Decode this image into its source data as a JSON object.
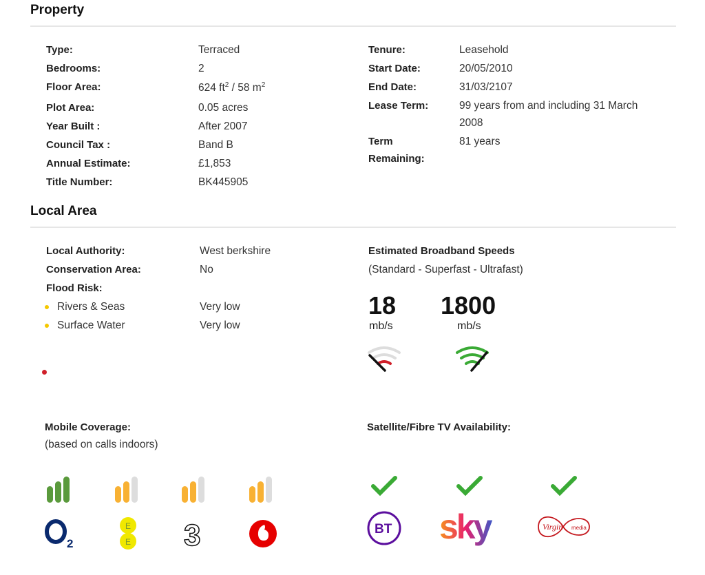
{
  "property": {
    "title": "Property",
    "left": [
      {
        "label": "Type:",
        "value": "Terraced"
      },
      {
        "label": "Bedrooms:",
        "value": "2"
      },
      {
        "label": "Floor Area:",
        "value": "624 ft² / 58 m²"
      },
      {
        "label": "Plot Area:",
        "value": "0.05 acres"
      },
      {
        "label": "Year Built :",
        "value": "After 2007"
      },
      {
        "label": "Council Tax :",
        "value": "Band B"
      },
      {
        "label": "Annual Estimate:",
        "value": "£1,853"
      },
      {
        "label": "Title Number:",
        "value": "BK445905"
      }
    ],
    "right": [
      {
        "label": "Tenure:",
        "value": "Leasehold"
      },
      {
        "label": "Start Date:",
        "value": "20/05/2010"
      },
      {
        "label": "End Date:",
        "value": "31/03/2107"
      },
      {
        "label": "Lease Term:",
        "value": "99 years from and including 31 March 2008"
      },
      {
        "label": "Term Remaining:",
        "value": "81 years"
      }
    ]
  },
  "local": {
    "title": "Local Area",
    "rows": [
      {
        "label": "Local Authority:",
        "value": "West berkshire"
      },
      {
        "label": "Conservation Area:",
        "value": "No"
      },
      {
        "label": "Flood Risk:",
        "value": ""
      }
    ],
    "flood": [
      {
        "label": "Rivers & Seas",
        "value": "Very low"
      },
      {
        "label": "Surface Water",
        "value": "Very low"
      }
    ],
    "broadband": {
      "title": "Estimated Broadband Speeds",
      "subtitle": "(Standard - Superfast - Ultrafast)",
      "speeds": [
        {
          "value": "18",
          "unit": "mb/s",
          "color": "#d0202a"
        },
        {
          "value": "1800",
          "unit": "mb/s",
          "color": "#3aaa35"
        }
      ]
    },
    "mobile": {
      "title": "Mobile Coverage:",
      "subtitle": "(based on calls indoors)",
      "networks": [
        {
          "name": "O2",
          "level": 3,
          "color": "#5a9a3c"
        },
        {
          "name": "EE",
          "level": 2,
          "color": "#f8b133"
        },
        {
          "name": "Three",
          "level": 2,
          "color": "#f8b133"
        },
        {
          "name": "Vodafone",
          "level": 2,
          "color": "#f8b133"
        }
      ]
    },
    "tv": {
      "title": "Satellite/Fibre TV Availability:",
      "providers": [
        {
          "name": "BT",
          "available": true
        },
        {
          "name": "sky",
          "available": true
        },
        {
          "name": "Virgin media",
          "available": true
        }
      ]
    }
  }
}
